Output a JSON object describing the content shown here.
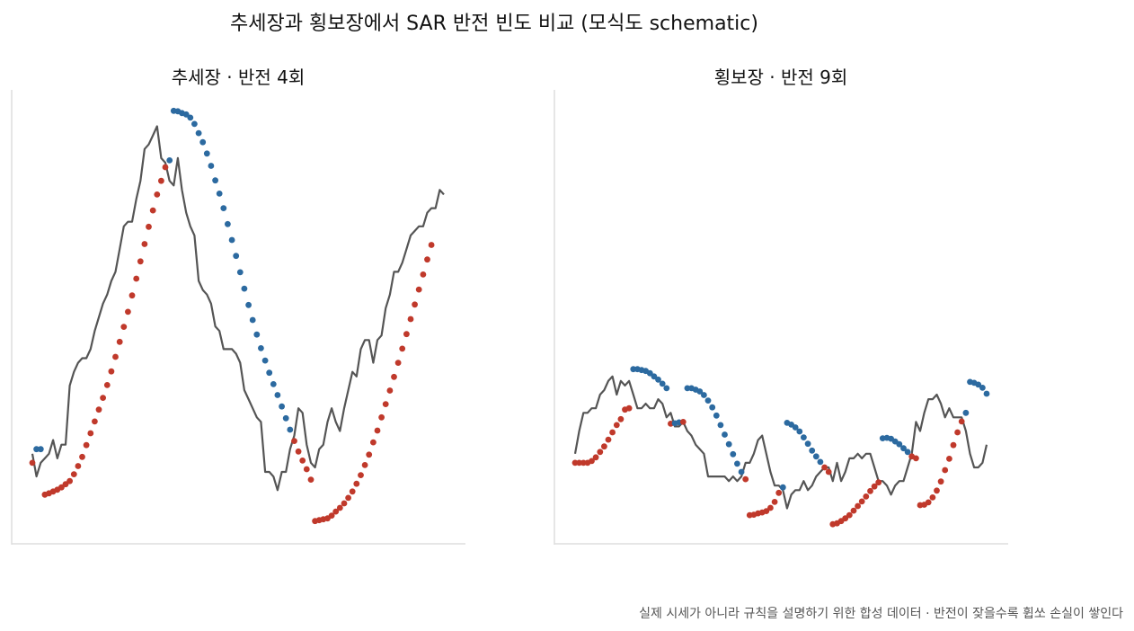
{
  "title": "추세장과 횡보장에서 SAR 반전 빈도 비교 (모식도 schematic)",
  "footnote": "실제 시세가 아니라 규칙을 설명하기 위한 합성 데이터 · 반전이 잦을수록 휩쏘 손실이 쌓인다",
  "colors": {
    "price": "#555555",
    "sar_up": "#c0392b",
    "sar_down": "#2c6aa0",
    "axis": "#dddddd"
  },
  "chart_data": [
    {
      "type": "line",
      "title": "추세장 · 반전 4회",
      "ylim": [
        0,
        100
      ],
      "grid": false,
      "x": [
        0,
        1,
        2,
        3,
        4,
        5,
        6,
        7,
        8,
        9,
        10,
        11,
        12,
        13,
        14,
        15,
        16,
        17,
        18,
        19,
        20,
        21,
        22,
        23,
        24,
        25,
        26,
        27,
        28,
        29,
        30,
        31,
        32,
        33,
        34,
        35,
        36,
        37,
        38,
        39,
        40,
        41,
        42,
        43,
        44,
        45,
        46,
        47,
        48,
        49,
        50,
        51,
        52,
        53,
        54,
        55,
        56,
        57,
        58,
        59,
        60,
        61,
        62,
        63,
        64,
        65,
        66,
        67,
        68,
        69,
        70,
        71,
        72,
        73,
        74,
        75,
        76,
        77,
        78,
        79,
        80,
        81,
        82,
        83,
        84,
        85,
        86,
        87,
        88,
        89,
        90,
        91,
        92,
        93,
        94,
        95,
        96,
        97,
        98,
        99
      ],
      "series": [
        {
          "role": "price",
          "values": [
            20,
            15,
            18,
            19,
            20,
            23,
            19,
            22,
            22,
            35,
            38,
            40,
            41,
            41,
            43,
            47,
            50,
            53,
            55,
            58,
            60,
            65,
            70,
            71,
            71,
            76,
            80,
            87,
            88,
            90,
            92,
            85,
            84,
            80,
            79,
            85,
            78,
            73,
            70,
            68,
            58,
            56,
            55,
            53,
            48,
            47,
            43,
            43,
            43,
            42,
            40,
            34,
            32,
            30,
            28,
            27,
            16,
            16,
            15,
            12,
            16,
            16,
            21,
            24,
            30,
            29,
            22,
            18,
            17,
            21,
            22,
            27,
            30,
            27,
            25,
            30,
            34,
            38,
            37,
            43,
            45,
            45,
            40,
            45,
            46,
            52,
            55,
            60,
            60,
            62,
            65,
            68,
            69,
            70,
            70,
            73,
            74,
            74,
            78,
            77
          ]
        },
        {
          "role": "sar",
          "points": [
            [
              0,
              18
            ],
            [
              1,
              21
            ],
            [
              2,
              21
            ],
            [
              3,
              11
            ],
            [
              4,
              11.3
            ],
            [
              5,
              11.7
            ],
            [
              6,
              12.1
            ],
            [
              7,
              12.6
            ],
            [
              8,
              13.3
            ],
            [
              9,
              14
            ],
            [
              10,
              15.5
            ],
            [
              11,
              17.3
            ],
            [
              12,
              19.3
            ],
            [
              13,
              21.9
            ],
            [
              14,
              24.5
            ],
            [
              15,
              27.1
            ],
            [
              16,
              29.7
            ],
            [
              17,
              32.3
            ],
            [
              18,
              35.1
            ],
            [
              19,
              38.1
            ],
            [
              20,
              41.3
            ],
            [
              21,
              44.6
            ],
            [
              22,
              47.9
            ],
            [
              23,
              51.2
            ],
            [
              24,
              54.8
            ],
            [
              25,
              58.5
            ],
            [
              26,
              62.3
            ],
            [
              27,
              66.1
            ],
            [
              28,
              69.9
            ],
            [
              29,
              73.5
            ],
            [
              30,
              77
            ],
            [
              31,
              80
            ],
            [
              32,
              83
            ],
            [
              33,
              84.5
            ],
            [
              34,
              95.4
            ],
            [
              35,
              95.3
            ],
            [
              36,
              94.9
            ],
            [
              37,
              94.6
            ],
            [
              38,
              93.9
            ],
            [
              39,
              92.5
            ],
            [
              40,
              90.5
            ],
            [
              41,
              88.5
            ],
            [
              42,
              86
            ],
            [
              43,
              83.3
            ],
            [
              44,
              80.1
            ],
            [
              45,
              77.2
            ],
            [
              46,
              74
            ],
            [
              47,
              70.5
            ],
            [
              48,
              67
            ],
            [
              49,
              63.5
            ],
            [
              50,
              59.9
            ],
            [
              51,
              56.3
            ],
            [
              52,
              52.7
            ],
            [
              53,
              49.4
            ],
            [
              54,
              46.2
            ],
            [
              55,
              43.2
            ],
            [
              56,
              40.5
            ],
            [
              57,
              37.8
            ],
            [
              58,
              35.3
            ],
            [
              59,
              32.9
            ],
            [
              60,
              30.4
            ],
            [
              61,
              27.8
            ],
            [
              62,
              25.3
            ],
            [
              63,
              22.8
            ],
            [
              64,
              20.5
            ],
            [
              65,
              18.5
            ],
            [
              66,
              16.6
            ],
            [
              67,
              14.3
            ],
            [
              68,
              5.2
            ],
            [
              69,
              5.4
            ],
            [
              70,
              5.6
            ],
            [
              71,
              5.8
            ],
            [
              72,
              6.4
            ],
            [
              73,
              7.3
            ],
            [
              74,
              8.1
            ],
            [
              75,
              9.1
            ],
            [
              76,
              10.3
            ],
            [
              77,
              11.7
            ],
            [
              78,
              13.4
            ],
            [
              79,
              15.3
            ],
            [
              80,
              17.5
            ],
            [
              81,
              19.8
            ],
            [
              82,
              22.5
            ],
            [
              83,
              25.1
            ],
            [
              84,
              28
            ],
            [
              85,
              30.9
            ],
            [
              86,
              33.9
            ],
            [
              87,
              36.9
            ],
            [
              88,
              40
            ],
            [
              89,
              43.1
            ],
            [
              90,
              46.3
            ],
            [
              91,
              49.6
            ],
            [
              92,
              52.8
            ],
            [
              93,
              56.1
            ],
            [
              94,
              59.4
            ],
            [
              95,
              62.7
            ],
            [
              96,
              65.9
            ]
          ]
        }
      ]
    },
    {
      "type": "line",
      "title": "횡보장 · 반전 9회",
      "ylim": [
        0,
        100
      ],
      "grid": false,
      "x": [
        0,
        1,
        2,
        3,
        4,
        5,
        6,
        7,
        8,
        9,
        10,
        11,
        12,
        13,
        14,
        15,
        16,
        17,
        18,
        19,
        20,
        21,
        22,
        23,
        24,
        25,
        26,
        27,
        28,
        29,
        30,
        31,
        32,
        33,
        34,
        35,
        36,
        37,
        38,
        39,
        40,
        41,
        42,
        43,
        44,
        45,
        46,
        47,
        48,
        49,
        50,
        51,
        52,
        53,
        54,
        55,
        56,
        57,
        58,
        59,
        60,
        61,
        62,
        63,
        64,
        65,
        66,
        67,
        68,
        69,
        70,
        71,
        72,
        73,
        74,
        75,
        76,
        77,
        78,
        79,
        80,
        81,
        82,
        83,
        84,
        85,
        86,
        87,
        88,
        89,
        90,
        91,
        92,
        93,
        94,
        95,
        96,
        97,
        98,
        99
      ],
      "series": [
        {
          "role": "price",
          "values": [
            20,
            25,
            29,
            29,
            30,
            30,
            33,
            34,
            36,
            37,
            33,
            36,
            35,
            36,
            33,
            30,
            30,
            31,
            30,
            30,
            32,
            31,
            28,
            29,
            26,
            26,
            27,
            25,
            24,
            22,
            21,
            20,
            15,
            15,
            15,
            15,
            15,
            14,
            15,
            14,
            15,
            18,
            18,
            20,
            23,
            24,
            20,
            16,
            13,
            13,
            12,
            8,
            11,
            12,
            12,
            14,
            12,
            13,
            15,
            16,
            17,
            17,
            14,
            18,
            14,
            16,
            19,
            19,
            20,
            19,
            20,
            20,
            17,
            14,
            14,
            13,
            11,
            13,
            14,
            14,
            17,
            20,
            27,
            25,
            29,
            32,
            32,
            33,
            31,
            28,
            30,
            28,
            28,
            28,
            25,
            20,
            17,
            17,
            18,
            22
          ]
        },
        {
          "role": "sar",
          "points": [
            [
              0,
              18
            ],
            [
              1,
              18
            ],
            [
              2,
              18
            ],
            [
              3,
              18
            ],
            [
              4,
              18.4
            ],
            [
              5,
              19.2
            ],
            [
              6,
              20.4
            ],
            [
              7,
              21.6
            ],
            [
              8,
              23.1
            ],
            [
              9,
              24.7
            ],
            [
              10,
              26.3
            ],
            [
              11,
              27.6
            ],
            [
              12,
              29.7
            ],
            [
              13,
              30
            ],
            [
              14,
              38.6
            ],
            [
              15,
              38.6
            ],
            [
              16,
              38.4
            ],
            [
              17,
              38.2
            ],
            [
              18,
              37.7
            ],
            [
              19,
              37
            ],
            [
              20,
              36.3
            ],
            [
              21,
              35.4
            ],
            [
              22,
              34.4
            ],
            [
              23,
              26.6
            ],
            [
              24,
              26.7
            ],
            [
              25,
              26.9
            ],
            [
              26,
              27
            ],
            [
              27,
              34.4
            ],
            [
              28,
              34.4
            ],
            [
              29,
              34.1
            ],
            [
              30,
              33.7
            ],
            [
              31,
              32.9
            ],
            [
              32,
              31.7
            ],
            [
              33,
              30.2
            ],
            [
              34,
              28.4
            ],
            [
              35,
              26.3
            ],
            [
              36,
              24.2
            ],
            [
              37,
              22.1
            ],
            [
              38,
              19.9
            ],
            [
              39,
              17.8
            ],
            [
              40,
              16
            ],
            [
              41,
              14.4
            ],
            [
              42,
              6.5
            ],
            [
              43,
              6.6
            ],
            [
              44,
              6.9
            ],
            [
              45,
              7.1
            ],
            [
              46,
              7.4
            ],
            [
              47,
              8.1
            ],
            [
              48,
              9.4
            ],
            [
              49,
              11.4
            ],
            [
              50,
              12.6
            ],
            [
              51,
              26.8
            ],
            [
              52,
              26.4
            ],
            [
              53,
              25.8
            ],
            [
              54,
              24.9
            ],
            [
              55,
              23.6
            ],
            [
              56,
              22.2
            ],
            [
              57,
              20.7
            ],
            [
              58,
              19.4
            ],
            [
              59,
              18.2
            ],
            [
              60,
              17
            ],
            [
              61,
              16
            ],
            [
              62,
              4.5
            ],
            [
              63,
              4.7
            ],
            [
              64,
              5.2
            ],
            [
              65,
              5.8
            ],
            [
              66,
              6.5
            ],
            [
              67,
              7.5
            ],
            [
              68,
              8.5
            ],
            [
              69,
              9.5
            ],
            [
              70,
              10.6
            ],
            [
              71,
              11.8
            ],
            [
              72,
              12.8
            ],
            [
              73,
              13.7
            ],
            [
              74,
              23.4
            ],
            [
              75,
              23.5
            ],
            [
              76,
              23.3
            ],
            [
              77,
              22.7
            ],
            [
              78,
              22.1
            ],
            [
              79,
              21.2
            ],
            [
              80,
              20.4
            ],
            [
              81,
              19.4
            ],
            [
              82,
              19
            ],
            [
              83,
              8.7
            ],
            [
              84,
              8.8
            ],
            [
              85,
              9.3
            ],
            [
              86,
              10.4
            ],
            [
              87,
              11.9
            ],
            [
              88,
              13.9
            ],
            [
              89,
              16.4
            ],
            [
              90,
              18.9
            ],
            [
              91,
              21.9
            ],
            [
              92,
              24.7
            ],
            [
              93,
              27.1
            ],
            [
              94,
              29
            ],
            [
              95,
              35.8
            ],
            [
              96,
              35.6
            ],
            [
              97,
              35.2
            ],
            [
              98,
              34.5
            ],
            [
              99,
              33.2
            ]
          ]
        }
      ]
    }
  ]
}
